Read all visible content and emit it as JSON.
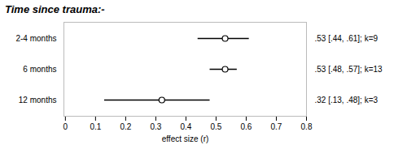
{
  "chart_data": {
    "type": "forest",
    "title": "Time since trauma:-",
    "xlabel": "effect size (r)",
    "categories": [
      "2-4 months",
      "6 months",
      "12 months"
    ],
    "values": [
      0.53,
      0.53,
      0.32
    ],
    "ci_low": [
      0.44,
      0.48,
      0.13
    ],
    "ci_high": [
      0.61,
      0.57,
      0.48
    ],
    "annotations": [
      ".53 [.44, .61]; k=9",
      ".53 [.48, .57]; k=13",
      ".32 [.13, .48]; k=3"
    ],
    "xlim": [
      -0.005,
      0.8
    ],
    "xticks": [
      0,
      0.1,
      0.2,
      0.3,
      0.4,
      0.5,
      0.6,
      0.7,
      0.8
    ]
  }
}
